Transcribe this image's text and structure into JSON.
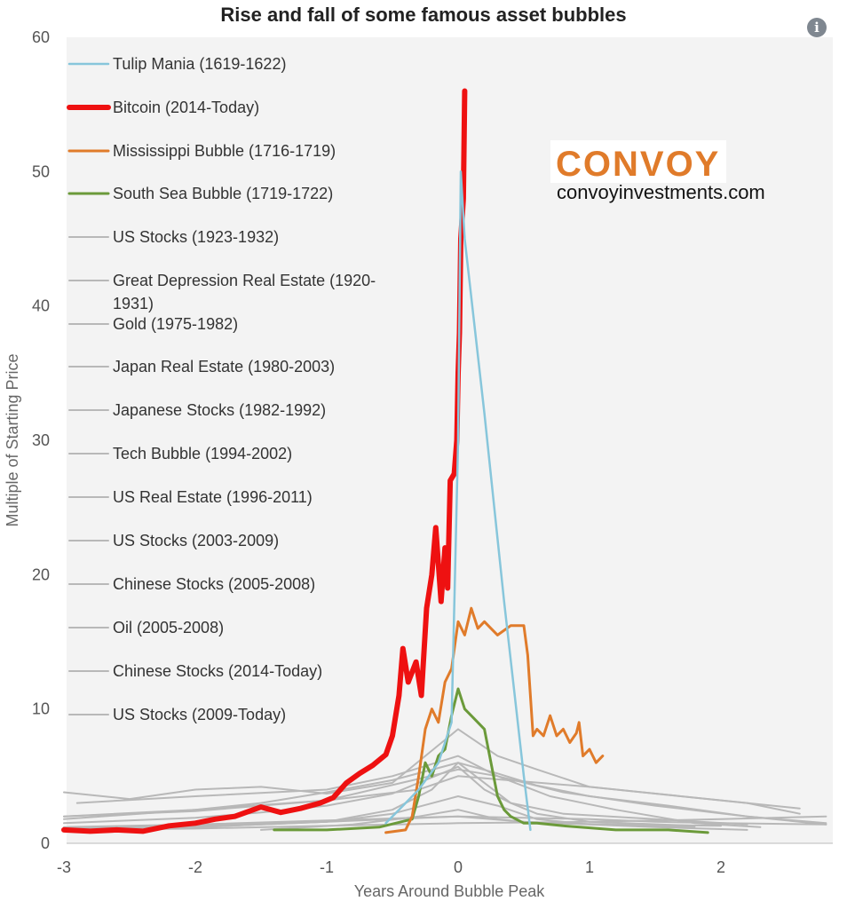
{
  "chart_data": {
    "type": "line",
    "title": "Rise and fall of some famous asset bubbles",
    "xlabel": "Years Around Bubble Peak",
    "ylabel": "Multiple of Starting Price",
    "xlim": [
      -3,
      2.8
    ],
    "ylim": [
      0,
      60
    ],
    "x_ticks": [
      "-3",
      "-2",
      "-1",
      "0",
      "1",
      "2"
    ],
    "y_ticks": [
      "0",
      "10",
      "20",
      "30",
      "40",
      "50",
      "60"
    ],
    "grid": false,
    "legend_position": "top-left",
    "series": [
      {
        "name": "Tulip Mania (1619-1622)",
        "color": "#87c6db",
        "width": 2.5,
        "points": [
          [
            -0.55,
            1.5
          ],
          [
            -0.45,
            2.5
          ],
          [
            -0.3,
            4
          ],
          [
            -0.15,
            6
          ],
          [
            -0.05,
            9
          ],
          [
            0,
            30
          ],
          [
            0.02,
            50
          ],
          [
            0.05,
            45
          ],
          [
            0.2,
            32
          ],
          [
            0.35,
            18
          ],
          [
            0.5,
            5
          ],
          [
            0.55,
            1
          ]
        ]
      },
      {
        "name": "Bitcoin (2014-Today)",
        "color": "#ee1111",
        "width": 6,
        "points": [
          [
            -3,
            1.0
          ],
          [
            -2.8,
            0.9
          ],
          [
            -2.6,
            1.0
          ],
          [
            -2.4,
            0.9
          ],
          [
            -2.2,
            1.3
          ],
          [
            -2.0,
            1.5
          ],
          [
            -1.85,
            1.8
          ],
          [
            -1.7,
            2.0
          ],
          [
            -1.5,
            2.7
          ],
          [
            -1.35,
            2.3
          ],
          [
            -1.2,
            2.6
          ],
          [
            -1.05,
            3.0
          ],
          [
            -0.95,
            3.4
          ],
          [
            -0.85,
            4.5
          ],
          [
            -0.75,
            5.2
          ],
          [
            -0.65,
            5.8
          ],
          [
            -0.55,
            6.6
          ],
          [
            -0.5,
            8.0
          ],
          [
            -0.45,
            11.0
          ],
          [
            -0.42,
            14.5
          ],
          [
            -0.38,
            12.0
          ],
          [
            -0.32,
            13.5
          ],
          [
            -0.28,
            11.0
          ],
          [
            -0.24,
            17.5
          ],
          [
            -0.2,
            20.0
          ],
          [
            -0.17,
            23.5
          ],
          [
            -0.13,
            18.0
          ],
          [
            -0.1,
            22.0
          ],
          [
            -0.08,
            19.0
          ],
          [
            -0.06,
            27.0
          ],
          [
            -0.03,
            27.5
          ],
          [
            -0.01,
            30.0
          ],
          [
            0.0,
            35.0
          ],
          [
            0.01,
            38.0
          ],
          [
            0.02,
            45.0
          ],
          [
            0.04,
            48.0
          ],
          [
            0.05,
            56.0
          ]
        ]
      },
      {
        "name": "Mississippi Bubble (1716-1719)",
        "color": "#e07b2a",
        "width": 3,
        "points": [
          [
            -0.55,
            0.8
          ],
          [
            -0.4,
            1.0
          ],
          [
            -0.35,
            2.0
          ],
          [
            -0.3,
            5.0
          ],
          [
            -0.25,
            8.5
          ],
          [
            -0.2,
            10.0
          ],
          [
            -0.15,
            9.0
          ],
          [
            -0.1,
            12.0
          ],
          [
            -0.05,
            13.0
          ],
          [
            0.0,
            16.5
          ],
          [
            0.05,
            15.5
          ],
          [
            0.1,
            17.5
          ],
          [
            0.15,
            16.0
          ],
          [
            0.2,
            16.5
          ],
          [
            0.25,
            16.0
          ],
          [
            0.3,
            15.5
          ],
          [
            0.4,
            16.2
          ],
          [
            0.5,
            16.2
          ],
          [
            0.53,
            14.0
          ],
          [
            0.55,
            11.0
          ],
          [
            0.57,
            8.0
          ],
          [
            0.6,
            8.5
          ],
          [
            0.65,
            8.0
          ],
          [
            0.7,
            9.5
          ],
          [
            0.75,
            8.0
          ],
          [
            0.8,
            8.5
          ],
          [
            0.85,
            7.5
          ],
          [
            0.9,
            8.2
          ],
          [
            0.92,
            9.0
          ],
          [
            0.95,
            6.5
          ],
          [
            1.0,
            7.0
          ],
          [
            1.05,
            6.0
          ],
          [
            1.1,
            6.5
          ]
        ]
      },
      {
        "name": "South Sea Bubble (1719-1722)",
        "color": "#6b9a3a",
        "width": 3,
        "points": [
          [
            -1.4,
            1.0
          ],
          [
            -1.0,
            1.0
          ],
          [
            -0.6,
            1.2
          ],
          [
            -0.35,
            1.8
          ],
          [
            -0.3,
            3.5
          ],
          [
            -0.25,
            6.0
          ],
          [
            -0.2,
            5.0
          ],
          [
            -0.15,
            6.5
          ],
          [
            -0.1,
            7.0
          ],
          [
            -0.05,
            9.5
          ],
          [
            0.0,
            11.5
          ],
          [
            0.05,
            10.0
          ],
          [
            0.1,
            9.5
          ],
          [
            0.15,
            9.0
          ],
          [
            0.2,
            8.5
          ],
          [
            0.25,
            6.0
          ],
          [
            0.3,
            3.5
          ],
          [
            0.35,
            2.5
          ],
          [
            0.4,
            2.0
          ],
          [
            0.5,
            1.5
          ],
          [
            0.6,
            1.5
          ],
          [
            0.8,
            1.3
          ],
          [
            1.2,
            1.0
          ],
          [
            1.6,
            1.0
          ],
          [
            1.9,
            0.8
          ]
        ]
      },
      {
        "name": "US Stocks (1923-1932)",
        "color": "#b8b8b8",
        "width": 2,
        "points": [
          [
            -2.9,
            3.0
          ],
          [
            -2.0,
            3.5
          ],
          [
            -1.0,
            4.0
          ],
          [
            -0.5,
            5.0
          ],
          [
            0.0,
            6.5
          ],
          [
            0.3,
            5.0
          ],
          [
            0.7,
            3.5
          ],
          [
            1.2,
            2.5
          ],
          [
            1.8,
            1.5
          ],
          [
            2.3,
            1.2
          ]
        ]
      },
      {
        "name": "Great Depression Real Estate (1920-1931)",
        "color": "#b8b8b8",
        "width": 2,
        "points": [
          [
            -3.0,
            2.0
          ],
          [
            -2.0,
            2.4
          ],
          [
            -1.0,
            3.2
          ],
          [
            -0.3,
            4.8
          ],
          [
            0.0,
            5.5
          ],
          [
            0.3,
            5.0
          ],
          [
            0.8,
            3.8
          ],
          [
            1.5,
            2.8
          ],
          [
            2.2,
            2.0
          ],
          [
            2.8,
            1.5
          ]
        ]
      },
      {
        "name": "Gold (1975-1982)",
        "color": "#b8b8b8",
        "width": 2,
        "points": [
          [
            -3.0,
            3.8
          ],
          [
            -2.5,
            3.3
          ],
          [
            -2.0,
            4.0
          ],
          [
            -1.5,
            4.2
          ],
          [
            -1.0,
            3.7
          ],
          [
            -0.5,
            4.5
          ],
          [
            0.0,
            8.5
          ],
          [
            0.3,
            6.5
          ],
          [
            0.6,
            5.5
          ],
          [
            1.0,
            4.2
          ],
          [
            1.6,
            3.6
          ],
          [
            2.2,
            3.0
          ],
          [
            2.6,
            2.2
          ]
        ]
      },
      {
        "name": "Japan Real Estate (1980-2003)",
        "color": "#b8b8b8",
        "width": 2,
        "points": [
          [
            -3.0,
            2.0
          ],
          [
            -2.0,
            2.5
          ],
          [
            -1.0,
            3.2
          ],
          [
            -0.3,
            4.0
          ],
          [
            0.0,
            5.0
          ],
          [
            0.5,
            4.6
          ],
          [
            1.0,
            4.2
          ],
          [
            1.5,
            3.7
          ],
          [
            2.0,
            3.2
          ],
          [
            2.6,
            2.6
          ]
        ]
      },
      {
        "name": "Japanese Stocks (1982-1992)",
        "color": "#b8b8b8",
        "width": 2,
        "points": [
          [
            -3.0,
            1.8
          ],
          [
            -2.0,
            2.5
          ],
          [
            -1.5,
            3.0
          ],
          [
            -1.0,
            3.8
          ],
          [
            -0.5,
            4.7
          ],
          [
            0.0,
            6.0
          ],
          [
            0.3,
            5.2
          ],
          [
            0.6,
            4.3
          ],
          [
            1.0,
            3.5
          ],
          [
            1.6,
            2.8
          ],
          [
            2.2,
            2.0
          ],
          [
            2.8,
            1.4
          ]
        ]
      },
      {
        "name": "Tech Bubble (1994-2002)",
        "color": "#b8b8b8",
        "width": 2,
        "points": [
          [
            -3.0,
            1.5
          ],
          [
            -2.0,
            1.9
          ],
          [
            -1.5,
            2.3
          ],
          [
            -1.0,
            2.8
          ],
          [
            -0.5,
            3.7
          ],
          [
            0.0,
            5.7
          ],
          [
            0.2,
            4.0
          ],
          [
            0.4,
            3.0
          ],
          [
            0.8,
            2.2
          ],
          [
            1.5,
            1.8
          ],
          [
            2.2,
            1.4
          ]
        ]
      },
      {
        "name": "US Real Estate (1996-2011)",
        "color": "#b8b8b8",
        "width": 2,
        "points": [
          [
            -3.0,
            1.1
          ],
          [
            -2.0,
            1.3
          ],
          [
            -1.0,
            1.6
          ],
          [
            0.0,
            2.0
          ],
          [
            0.5,
            1.9
          ],
          [
            1.0,
            1.8
          ],
          [
            1.5,
            1.6
          ],
          [
            2.0,
            1.5
          ],
          [
            2.8,
            1.4
          ]
        ]
      },
      {
        "name": "US Stocks (2003-2009)",
        "color": "#b8b8b8",
        "width": 2,
        "points": [
          [
            -3.0,
            1.2
          ],
          [
            -2.0,
            1.4
          ],
          [
            -1.0,
            1.7
          ],
          [
            0.0,
            2.0
          ],
          [
            0.5,
            1.6
          ],
          [
            1.0,
            1.4
          ],
          [
            1.5,
            1.2
          ],
          [
            2.2,
            1.0
          ]
        ]
      },
      {
        "name": "Chinese Stocks (2005-2008)",
        "color": "#b8b8b8",
        "width": 2,
        "points": [
          [
            -3.0,
            1.0
          ],
          [
            -2.0,
            1.2
          ],
          [
            -1.0,
            1.6
          ],
          [
            -0.5,
            2.5
          ],
          [
            -0.2,
            4.0
          ],
          [
            0.0,
            6.0
          ],
          [
            0.2,
            4.5
          ],
          [
            0.4,
            3.0
          ],
          [
            0.6,
            2.2
          ],
          [
            1.0,
            1.6
          ],
          [
            1.8,
            1.3
          ]
        ]
      },
      {
        "name": "Oil (2005-2008)",
        "color": "#b8b8b8",
        "width": 2,
        "points": [
          [
            -3.0,
            1.0
          ],
          [
            -2.0,
            1.2
          ],
          [
            -1.0,
            1.6
          ],
          [
            -0.5,
            2.2
          ],
          [
            0.0,
            3.5
          ],
          [
            0.3,
            2.8
          ],
          [
            0.6,
            1.8
          ],
          [
            1.0,
            1.4
          ],
          [
            1.8,
            1.2
          ]
        ]
      },
      {
        "name": "Chinese Stocks (2014-Today)",
        "color": "#b8b8b8",
        "width": 2,
        "points": [
          [
            -1.5,
            1.0
          ],
          [
            -0.8,
            1.4
          ],
          [
            -0.3,
            2.0
          ],
          [
            0.0,
            2.5
          ],
          [
            0.3,
            1.8
          ],
          [
            0.6,
            1.5
          ],
          [
            1.2,
            1.4
          ],
          [
            2.0,
            1.3
          ]
        ]
      },
      {
        "name": "US Stocks (2009-Today)",
        "color": "#b8b8b8",
        "width": 2,
        "points": [
          [
            -3.0,
            1.0
          ],
          [
            -2.0,
            1.1
          ],
          [
            -1.0,
            1.3
          ],
          [
            0.0,
            1.5
          ],
          [
            1.0,
            1.6
          ],
          [
            2.0,
            1.8
          ],
          [
            2.8,
            2.0
          ]
        ]
      }
    ]
  },
  "brand": {
    "name": "CONVOY",
    "url": "convoyinvestments.com"
  },
  "info_icon": "info-icon"
}
